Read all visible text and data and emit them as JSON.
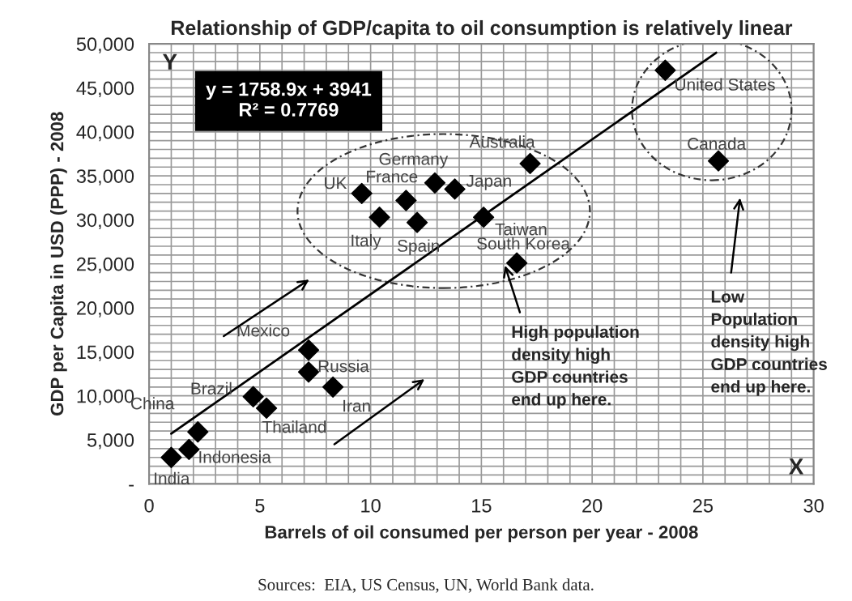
{
  "chart_data": {
    "type": "scatter",
    "title": "Relationship of GDP/capita to oil consumption is relatively linear",
    "xlabel": "Barrels of oil consumed per person per year - 2008",
    "ylabel": "GDP per Capita in USD (PPP) - 2008",
    "series": [
      {
        "color": "#000000",
        "marker": "diamond",
        "x": [
          1.0,
          1.8,
          2.2,
          4.7,
          5.3,
          7.2,
          7.2,
          8.3,
          9.6,
          10.4,
          11.6,
          12.1,
          12.9,
          13.8,
          15.1,
          16.6,
          17.2,
          23.3,
          25.7
        ],
        "values": [
          3000,
          3900,
          5900,
          9900,
          8600,
          15200,
          12700,
          11000,
          33000,
          30300,
          32200,
          29700,
          34200,
          33500,
          30300,
          25100,
          36400,
          47000,
          36700
        ]
      },
      {
        "type": "line",
        "color": "#000000",
        "marker": "none",
        "line_style": "solid",
        "x": [
          1.0,
          25.6
        ],
        "values": [
          5700,
          49000
        ]
      }
    ],
    "xlim": [
      0,
      30
    ],
    "xticks": [
      0,
      5,
      10,
      15,
      20,
      25,
      30
    ],
    "ylim": [
      0,
      50000
    ],
    "yticks": [
      {
        "value": 0,
        "label": "-"
      },
      {
        "value": 5000,
        "label": "5,000"
      },
      {
        "value": 10000,
        "label": "10,000"
      },
      {
        "value": 15000,
        "label": "15,000"
      },
      {
        "value": 20000,
        "label": "20,000"
      },
      {
        "value": 25000,
        "label": "25,000"
      },
      {
        "value": 30000,
        "label": "30,000"
      },
      {
        "value": 35000,
        "label": "35,000"
      },
      {
        "value": 40000,
        "label": "40,000"
      },
      {
        "value": 45000,
        "label": "45,000"
      },
      {
        "value": 50000,
        "label": "50,000"
      }
    ],
    "grid": true,
    "legend": false,
    "annotations": [
      {
        "text": "India",
        "x": 1.0,
        "y": 3000
      },
      {
        "text": "Indonesia",
        "x": 1.8,
        "y": 3900
      },
      {
        "text": "China",
        "x": 2.2,
        "y": 5900
      },
      {
        "text": "Brazil",
        "x": 4.7,
        "y": 9900
      },
      {
        "text": "Thailand",
        "x": 5.3,
        "y": 8600
      },
      {
        "text": "Mexico",
        "x": 7.2,
        "y": 15200
      },
      {
        "text": "Russia",
        "x": 7.2,
        "y": 12700
      },
      {
        "text": "Iran",
        "x": 8.3,
        "y": 11000
      },
      {
        "text": "UK",
        "x": 9.6,
        "y": 33000
      },
      {
        "text": "Italy",
        "x": 10.4,
        "y": 30300
      },
      {
        "text": "France",
        "x": 11.6,
        "y": 32200
      },
      {
        "text": "Spain",
        "x": 12.1,
        "y": 29700
      },
      {
        "text": "Germany",
        "x": 12.9,
        "y": 34200
      },
      {
        "text": "Japan",
        "x": 13.8,
        "y": 33500
      },
      {
        "text": "Taiwan",
        "x": 15.1,
        "y": 30300
      },
      {
        "text": "South Korea",
        "x": 16.6,
        "y": 25100
      },
      {
        "text": "Australia",
        "x": 17.2,
        "y": 36400
      },
      {
        "text": "United States",
        "x": 23.3,
        "y": 47000
      },
      {
        "text": "Canada",
        "x": 25.7,
        "y": 36700
      },
      "y = 1758.9x + 3941\nR² = 0.7769",
      "Y",
      "X",
      {
        "text": "High population\ndensity high\nGDP countries\nend up here.",
        "x": 16.0,
        "y": 25300
      },
      "Low\nPopulation\ndensity high\nGDP countries\nend up here.",
      "Sources:  EIA, US Census, UN, World Bank data."
    ]
  }
}
